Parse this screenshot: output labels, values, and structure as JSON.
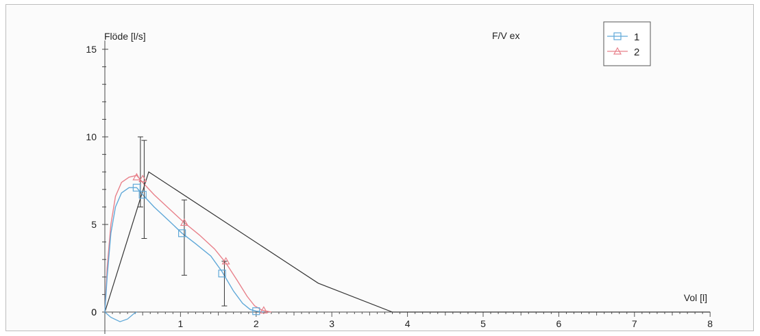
{
  "chart_data": {
    "type": "line",
    "title": "F/V ex",
    "xlabel": "Vol [l]",
    "ylabel": "Flöde [l/s]",
    "xlim": [
      0,
      8
    ],
    "ylim": [
      -0.5,
      15.5
    ],
    "xticks": [
      1,
      2,
      3,
      4,
      5,
      6,
      7,
      8
    ],
    "yticks": [
      0,
      5,
      10,
      15
    ],
    "legend_position": "top-right",
    "colors": {
      "series1": "#5fa8d8",
      "series2": "#e8808a",
      "reference": "#333333"
    },
    "series": [
      {
        "name": "1",
        "marker": "square",
        "points": [
          [
            0,
            0
          ],
          [
            0.03,
            2.0
          ],
          [
            0.08,
            4.5
          ],
          [
            0.14,
            6.0
          ],
          [
            0.22,
            6.8
          ],
          [
            0.32,
            7.1
          ],
          [
            0.42,
            7.1
          ],
          [
            0.5,
            6.7
          ],
          [
            0.65,
            6.0
          ],
          [
            0.85,
            5.2
          ],
          [
            1.02,
            4.5
          ],
          [
            1.2,
            3.9
          ],
          [
            1.4,
            3.2
          ],
          [
            1.55,
            2.3
          ],
          [
            1.7,
            1.2
          ],
          [
            1.82,
            0.5
          ],
          [
            1.92,
            0.15
          ],
          [
            2.0,
            0.05
          ],
          [
            2.1,
            0.0
          ]
        ],
        "markers": [
          [
            0.42,
            7.1
          ],
          [
            0.5,
            6.7
          ],
          [
            1.02,
            4.5
          ],
          [
            1.55,
            2.2
          ],
          [
            2.0,
            0.05
          ]
        ]
      },
      {
        "name": "2",
        "marker": "triangle",
        "points": [
          [
            0,
            0
          ],
          [
            0.03,
            2.5
          ],
          [
            0.08,
            5.0
          ],
          [
            0.14,
            6.6
          ],
          [
            0.22,
            7.4
          ],
          [
            0.32,
            7.7
          ],
          [
            0.42,
            7.8
          ],
          [
            0.5,
            7.4
          ],
          [
            0.65,
            6.7
          ],
          [
            0.85,
            5.9
          ],
          [
            1.05,
            5.1
          ],
          [
            1.25,
            4.4
          ],
          [
            1.45,
            3.6
          ],
          [
            1.6,
            2.8
          ],
          [
            1.75,
            1.8
          ],
          [
            1.88,
            0.9
          ],
          [
            1.98,
            0.35
          ],
          [
            2.08,
            0.1
          ],
          [
            2.2,
            0.0
          ]
        ],
        "markers": [
          [
            0.42,
            7.7
          ],
          [
            0.5,
            7.6
          ],
          [
            1.05,
            5.1
          ],
          [
            1.6,
            2.9
          ],
          [
            2.1,
            0.1
          ]
        ]
      },
      {
        "name": "",
        "role": "reference",
        "points": [
          [
            0,
            0
          ],
          [
            0.58,
            8.0
          ],
          [
            2.82,
            1.65
          ],
          [
            3.8,
            0.0
          ],
          [
            8,
            0
          ]
        ]
      },
      {
        "name": "",
        "role": "early-dip",
        "points": [
          [
            0,
            0
          ],
          [
            0.08,
            -0.3
          ],
          [
            0.2,
            -0.55
          ],
          [
            0.3,
            -0.4
          ],
          [
            0.38,
            -0.1
          ],
          [
            0.42,
            0.0
          ]
        ]
      }
    ],
    "error_bars": [
      {
        "x": 0.47,
        "low": 6.0,
        "high": 10.0
      },
      {
        "x": 0.52,
        "low": 4.2,
        "high": 9.8
      },
      {
        "x": 1.05,
        "low": 2.1,
        "high": 6.4
      },
      {
        "x": 1.58,
        "low": 0.35,
        "high": 2.9
      }
    ]
  }
}
